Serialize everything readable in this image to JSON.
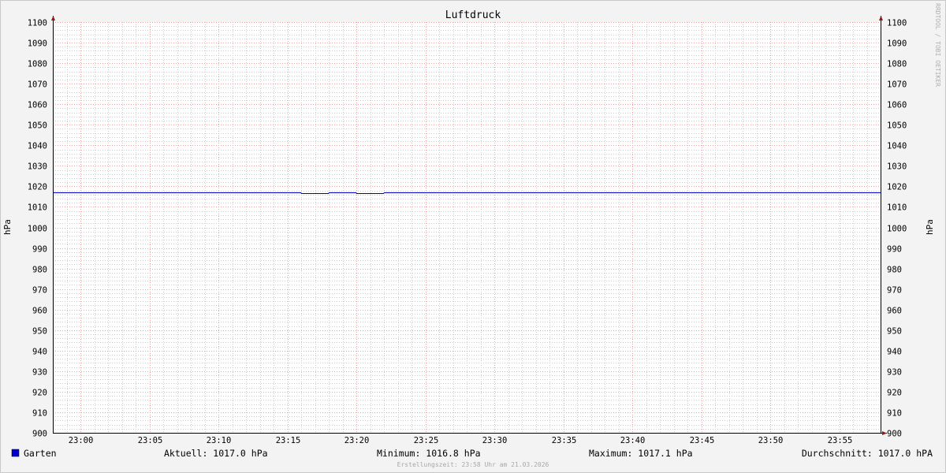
{
  "chart_data": {
    "type": "line",
    "title": "Luftdruck",
    "ylabel": "hPa",
    "ylabel_right": "hPa",
    "ylim": [
      900,
      1100
    ],
    "yticks": [
      900,
      910,
      920,
      930,
      940,
      950,
      960,
      970,
      980,
      990,
      1000,
      1010,
      1020,
      1030,
      1040,
      1050,
      1060,
      1070,
      1080,
      1090,
      1100
    ],
    "xlim": [
      "22:58",
      "23:58"
    ],
    "xticks": [
      "23:00",
      "23:05",
      "23:10",
      "23:15",
      "23:20",
      "23:25",
      "23:30",
      "23:35",
      "23:40",
      "23:45",
      "23:50",
      "23:55"
    ],
    "grid": true,
    "series": [
      {
        "name": "Garten",
        "color": "#0000cc",
        "steps": [
          {
            "start": "22:58",
            "end": "23:16",
            "value": 1017.0
          },
          {
            "start": "23:16",
            "end": "23:18",
            "value": 1016.8
          },
          {
            "start": "23:18",
            "end": "23:20",
            "value": 1017.0
          },
          {
            "start": "23:20",
            "end": "23:22",
            "value": 1016.8
          },
          {
            "start": "23:22",
            "end": "23:58",
            "value": 1017.0
          }
        ]
      }
    ],
    "legend": {
      "placement": "bottom",
      "series_name": "Garten",
      "current": "Aktuell: 1017.0 hPa",
      "minimum": "Minimum: 1016.8 hPa",
      "maximum": "Maximum: 1017.1 hPa",
      "average": "Durchschnitt: 1017.0 hPA"
    },
    "footer": "Erstellungszeit: 23:58 Uhr am 21.03.2026",
    "watermark": "RRDTOOL / TOBI OETIKER",
    "colors": {
      "axis_arrow": "#8b1a1a",
      "major_grid": "#f0a0a0",
      "minor_grid": "#cccccc",
      "series": "#0000cc"
    }
  }
}
